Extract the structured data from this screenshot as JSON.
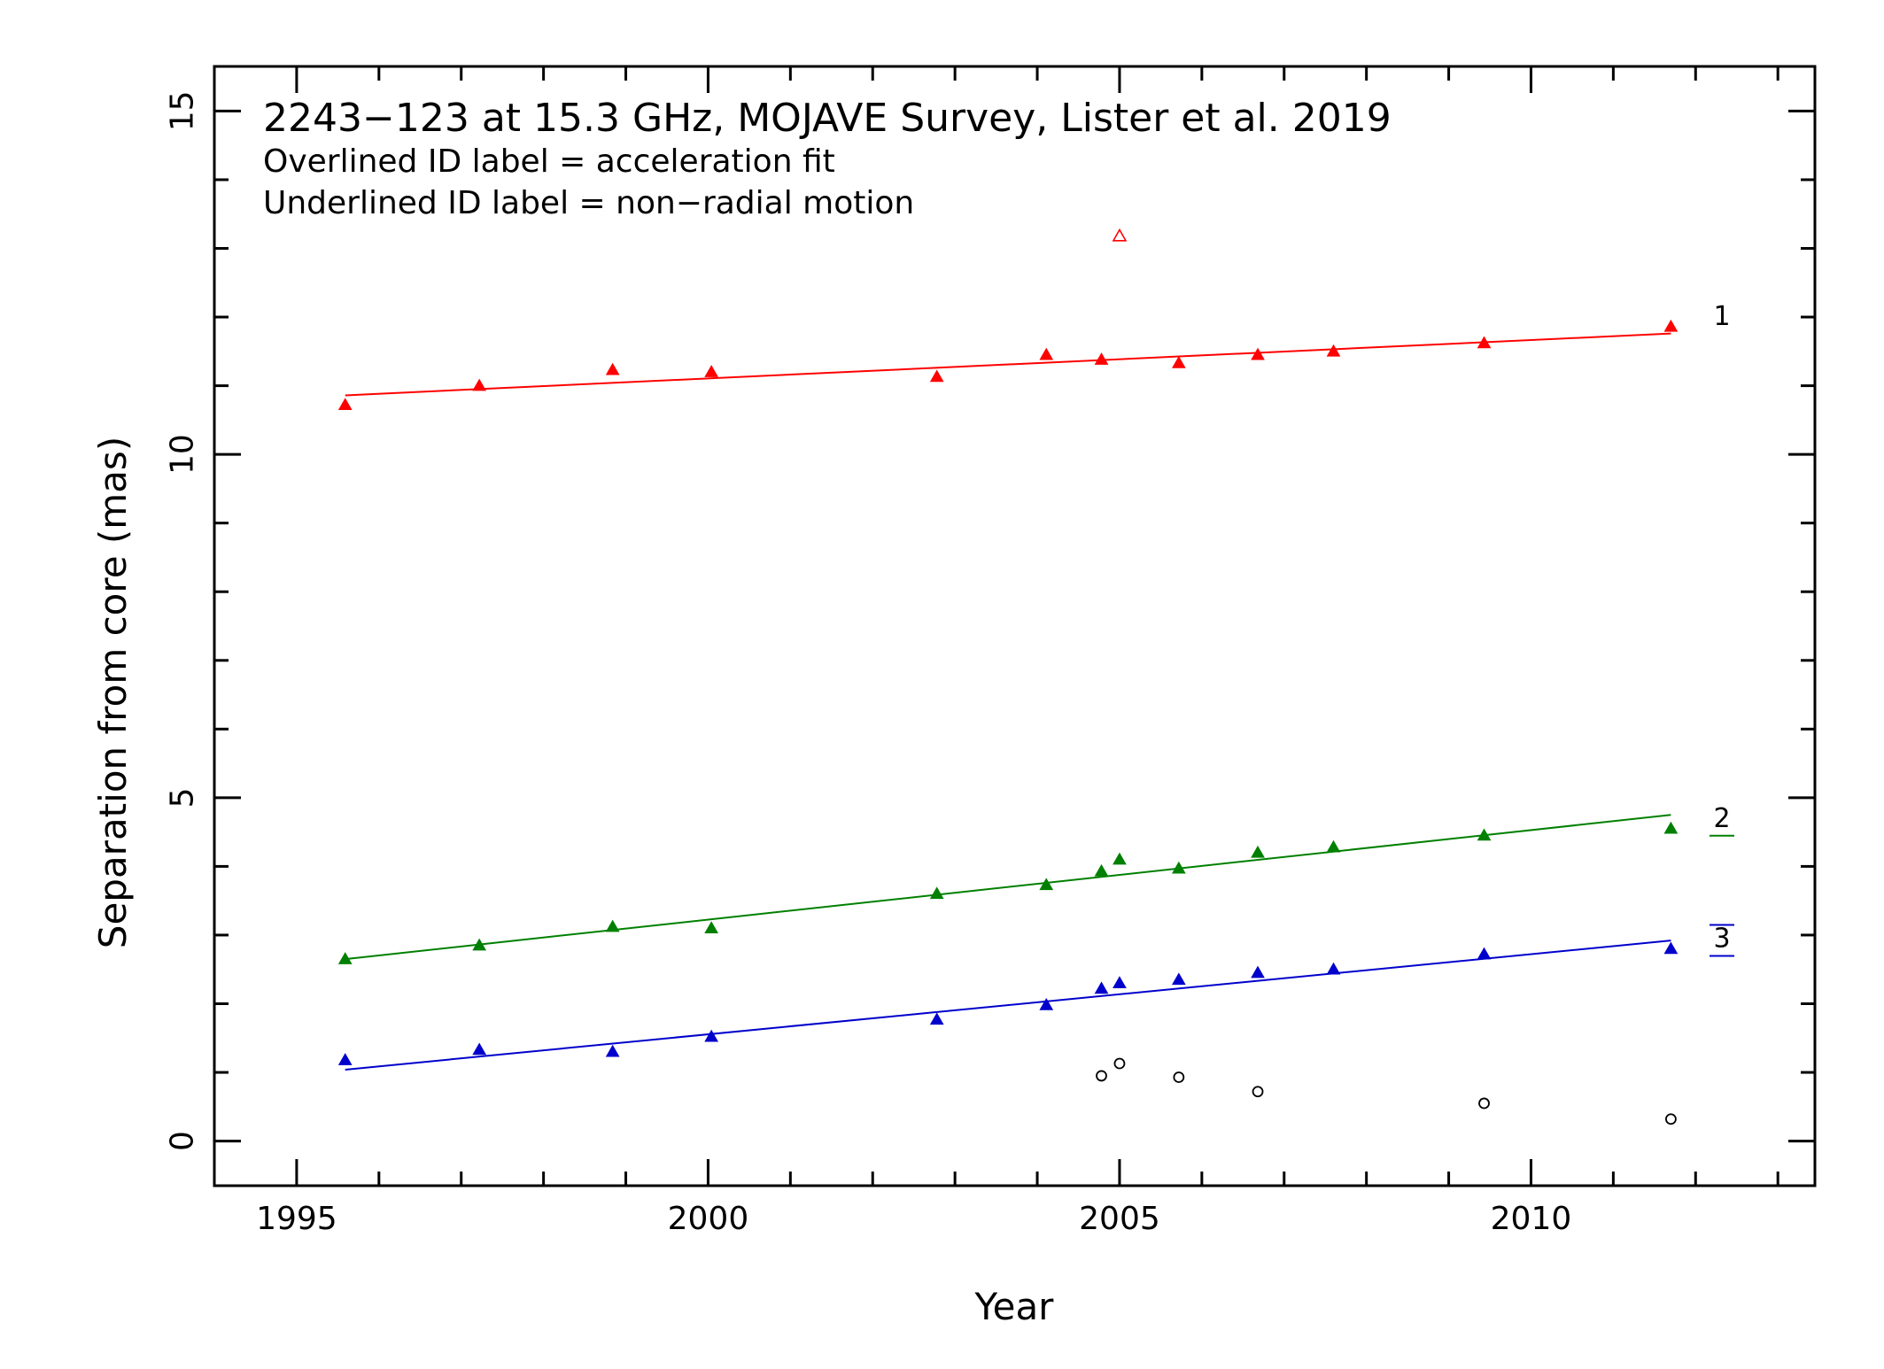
{
  "chart_data": {
    "type": "scatter",
    "title": "2243−123 at 15.3 GHz, MOJAVE Survey, Lister et al. 2019",
    "notes": [
      "Overlined ID label = acceleration fit",
      "Underlined ID label = non−radial motion"
    ],
    "xlabel": "Year",
    "ylabel": "Separation from core (mas)",
    "xlim": [
      1994.0,
      2013.45
    ],
    "ylim": [
      -0.65,
      15.65
    ],
    "xticks": [
      1995,
      2000,
      2005,
      2010
    ],
    "xtick_labels": [
      "1995",
      "2000",
      "2005",
      "2010"
    ],
    "yticks": [
      0,
      5,
      10,
      15
    ],
    "ytick_labels": [
      "0",
      "5",
      "10",
      "15"
    ],
    "x_minor_step": 1,
    "y_minor_step": 1,
    "series": [
      {
        "label": "1",
        "color": "#ff0000",
        "marker": "filled-triangle",
        "label_style": "plain",
        "points": [
          [
            1995.59,
            10.72
          ],
          [
            1997.22,
            11.0
          ],
          [
            1998.84,
            11.23
          ],
          [
            2000.04,
            11.2
          ],
          [
            2002.78,
            11.13
          ],
          [
            2004.11,
            11.45
          ],
          [
            2004.78,
            11.38
          ],
          [
            2005.72,
            11.33
          ],
          [
            2006.68,
            11.45
          ],
          [
            2007.6,
            11.5
          ],
          [
            2009.43,
            11.62
          ],
          [
            2011.7,
            11.86
          ]
        ],
        "fit": [
          [
            1995.59,
            10.86
          ],
          [
            2011.7,
            11.76
          ]
        ]
      },
      {
        "label": "",
        "color": "#ff0000",
        "marker": "open-triangle",
        "points": [
          [
            2005.0,
            13.18
          ]
        ]
      },
      {
        "label": "2",
        "color": "#008000",
        "marker": "filled-triangle",
        "label_style": "underline",
        "points": [
          [
            1995.59,
            2.65
          ],
          [
            1997.22,
            2.85
          ],
          [
            1998.84,
            3.12
          ],
          [
            2000.04,
            3.1
          ],
          [
            2002.78,
            3.6
          ],
          [
            2004.11,
            3.73
          ],
          [
            2004.78,
            3.93
          ],
          [
            2005.0,
            4.1
          ],
          [
            2005.72,
            3.97
          ],
          [
            2006.68,
            4.2
          ],
          [
            2007.6,
            4.28
          ],
          [
            2009.43,
            4.45
          ],
          [
            2011.7,
            4.55
          ]
        ],
        "fit": [
          [
            1995.59,
            2.65
          ],
          [
            2011.7,
            4.75
          ]
        ]
      },
      {
        "label": "3",
        "color": "#0000cc",
        "marker": "filled-triangle",
        "label_style": "overline-underline",
        "points": [
          [
            1995.59,
            1.18
          ],
          [
            1997.22,
            1.33
          ],
          [
            1998.84,
            1.3
          ],
          [
            2000.04,
            1.52
          ],
          [
            2002.78,
            1.77
          ],
          [
            2004.11,
            1.98
          ],
          [
            2004.78,
            2.22
          ],
          [
            2005.0,
            2.3
          ],
          [
            2005.72,
            2.35
          ],
          [
            2006.68,
            2.45
          ],
          [
            2007.6,
            2.5
          ],
          [
            2009.43,
            2.72
          ],
          [
            2011.7,
            2.8
          ]
        ],
        "fit": [
          [
            1995.59,
            1.04
          ],
          [
            2011.7,
            2.92
          ]
        ]
      },
      {
        "label": "",
        "color": "#000000",
        "marker": "open-circle",
        "points": [
          [
            2004.78,
            0.95
          ],
          [
            2005.0,
            1.13
          ],
          [
            2005.72,
            0.93
          ],
          [
            2006.68,
            0.72
          ],
          [
            2009.43,
            0.55
          ],
          [
            2011.7,
            0.32
          ]
        ]
      }
    ]
  }
}
